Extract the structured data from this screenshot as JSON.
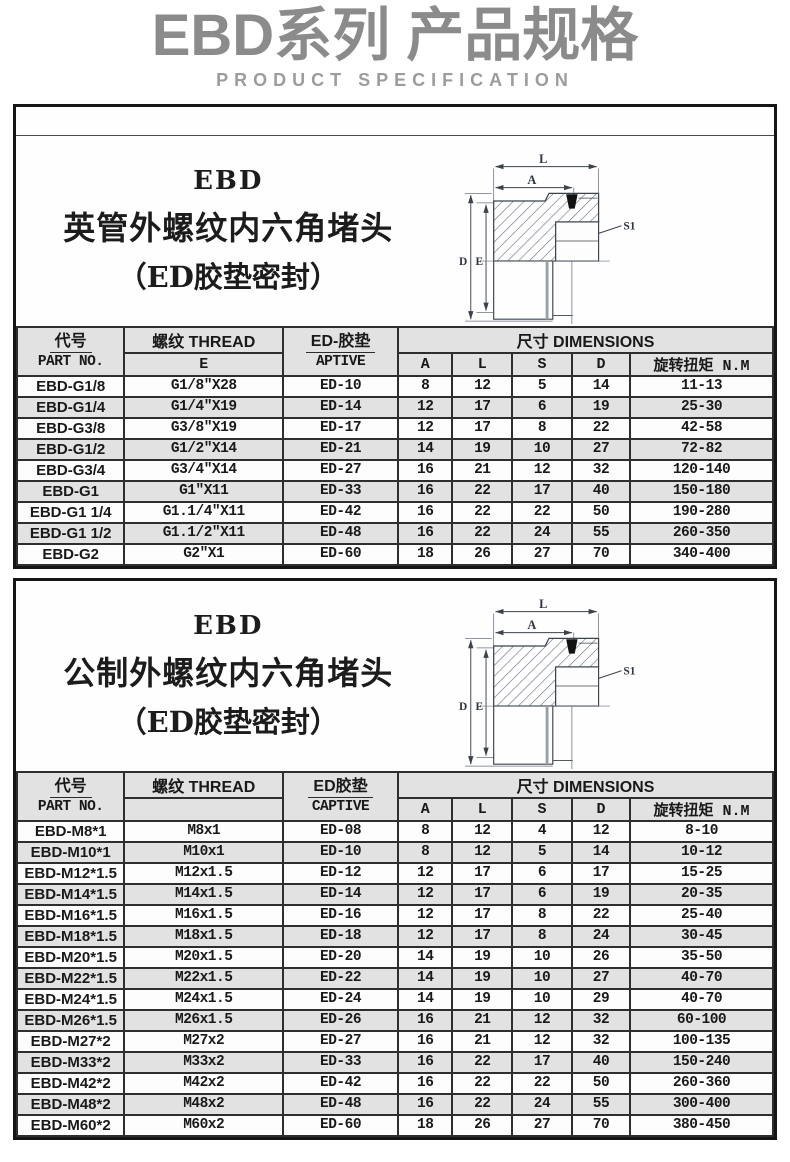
{
  "page": {
    "title": "EBD系列 产品规格",
    "subtitle": "PRODUCT SPECIFICATION"
  },
  "diagram": {
    "labels": {
      "l": "L",
      "a": "A",
      "d": "D",
      "e": "E",
      "s1": "S1"
    }
  },
  "sections": [
    {
      "series": "EBD",
      "heading": "英管外螺纹内六角堵头",
      "subheading": "（ED胶垫密封）",
      "table": {
        "part_no_zh": "代号",
        "part_no_en": "PART NO.",
        "thread_zh": "螺纹 THREAD",
        "thread_sub": "E",
        "seal_zh": "ED-胶垫",
        "seal_en": "APTIVE",
        "dims_zh": "尺寸 DIMENSIONS",
        "dim_cols": [
          "A",
          "L",
          "S",
          "D",
          "旋转扭矩 N.M"
        ],
        "rows": [
          [
            "EBD-G1/8",
            "G1/8″X28",
            "ED-10",
            "8",
            "12",
            "5",
            "14",
            "11-13"
          ],
          [
            "EBD-G1/4",
            "G1/4″X19",
            "ED-14",
            "12",
            "17",
            "6",
            "19",
            "25-30"
          ],
          [
            "EBD-G3/8",
            "G3/8″X19",
            "ED-17",
            "12",
            "17",
            "8",
            "22",
            "42-58"
          ],
          [
            "EBD-G1/2",
            "G1/2″X14",
            "ED-21",
            "14",
            "19",
            "10",
            "27",
            "72-82"
          ],
          [
            "EBD-G3/4",
            "G3/4″X14",
            "ED-27",
            "16",
            "21",
            "12",
            "32",
            "120-140"
          ],
          [
            "EBD-G1",
            "G1″X11",
            "ED-33",
            "16",
            "22",
            "17",
            "40",
            "150-180"
          ],
          [
            "EBD-G1 1/4",
            "G1.1/4″X11",
            "ED-42",
            "16",
            "22",
            "22",
            "50",
            "190-280"
          ],
          [
            "EBD-G1 1/2",
            "G1.1/2″X11",
            "ED-48",
            "16",
            "22",
            "24",
            "55",
            "260-350"
          ],
          [
            "EBD-G2",
            "G2″X1",
            "ED-60",
            "18",
            "26",
            "27",
            "70",
            "340-400"
          ]
        ]
      }
    },
    {
      "series": "EBD",
      "heading": "公制外螺纹内六角堵头",
      "subheading": "（ED胶垫密封）",
      "table": {
        "part_no_zh": "代号",
        "part_no_en": "PART NO.",
        "thread_zh": "螺纹 THREAD",
        "thread_sub": "",
        "seal_zh": "ED胶垫",
        "seal_en": "CAPTIVE",
        "dims_zh": "尺寸 DIMENSIONS",
        "dim_cols": [
          "A",
          "L",
          "S",
          "D",
          "旋转扭矩 N.M"
        ],
        "rows": [
          [
            "EBD-M8*1",
            "M8x1",
            "ED-08",
            "8",
            "12",
            "4",
            "12",
            "8-10"
          ],
          [
            "EBD-M10*1",
            "M10x1",
            "ED-10",
            "8",
            "12",
            "5",
            "14",
            "10-12"
          ],
          [
            "EBD-M12*1.5",
            "M12x1.5",
            "ED-12",
            "12",
            "17",
            "6",
            "17",
            "15-25"
          ],
          [
            "EBD-M14*1.5",
            "M14x1.5",
            "ED-14",
            "12",
            "17",
            "6",
            "19",
            "20-35"
          ],
          [
            "EBD-M16*1.5",
            "M16x1.5",
            "ED-16",
            "12",
            "17",
            "8",
            "22",
            "25-40"
          ],
          [
            "EBD-M18*1.5",
            "M18x1.5",
            "ED-18",
            "12",
            "17",
            "8",
            "24",
            "30-45"
          ],
          [
            "EBD-M20*1.5",
            "M20x1.5",
            "ED-20",
            "14",
            "19",
            "10",
            "26",
            "35-50"
          ],
          [
            "EBD-M22*1.5",
            "M22x1.5",
            "ED-22",
            "14",
            "19",
            "10",
            "27",
            "40-70"
          ],
          [
            "EBD-M24*1.5",
            "M24x1.5",
            "ED-24",
            "14",
            "19",
            "10",
            "29",
            "40-70"
          ],
          [
            "EBD-M26*1.5",
            "M26x1.5",
            "ED-26",
            "16",
            "21",
            "12",
            "32",
            "60-100"
          ],
          [
            "EBD-M27*2",
            "M27x2",
            "ED-27",
            "16",
            "21",
            "12",
            "32",
            "100-135"
          ],
          [
            "EBD-M33*2",
            "M33x2",
            "ED-33",
            "16",
            "22",
            "17",
            "40",
            "150-240"
          ],
          [
            "EBD-M42*2",
            "M42x2",
            "ED-42",
            "16",
            "22",
            "22",
            "50",
            "260-360"
          ],
          [
            "EBD-M48*2",
            "M48x2",
            "ED-48",
            "16",
            "22",
            "24",
            "55",
            "300-400"
          ],
          [
            "EBD-M60*2",
            "M60x2",
            "ED-60",
            "18",
            "26",
            "27",
            "70",
            "380-450"
          ]
        ]
      }
    }
  ],
  "colors": {
    "title_gray": "#8b8b8b",
    "header_bg": "#e2e2e2",
    "row_shade": "#e2e2e2",
    "border_dark": "#2e2e2e",
    "drawing_line": "#57606c"
  }
}
